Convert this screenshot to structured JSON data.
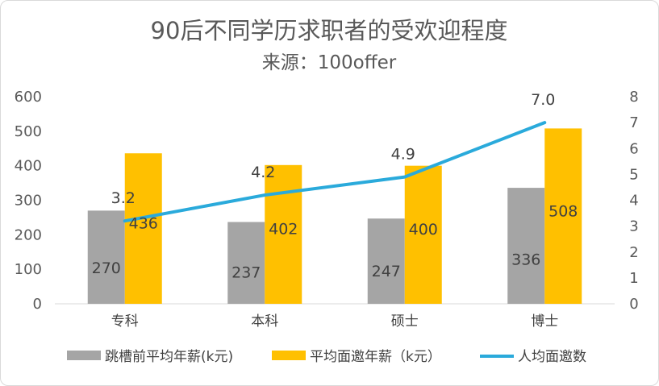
{
  "chart_data": {
    "type": "bar+line",
    "title": "90后不同学历求职者的受欢迎程度",
    "subtitle": "来源：100offer",
    "categories": [
      "专科",
      "本科",
      "硕士",
      "博士"
    ],
    "series": [
      {
        "name": "跳槽前平均年薪(k元)",
        "type": "bar",
        "axis": "left",
        "color": "#A5A5A5",
        "values": [
          270,
          237,
          247,
          336
        ]
      },
      {
        "name": "平均面邀年薪（k元）",
        "type": "bar",
        "axis": "left",
        "color": "#FFC000",
        "values": [
          436,
          402,
          400,
          508
        ]
      },
      {
        "name": "人均面邀数",
        "type": "line",
        "axis": "right",
        "color": "#2AAADB",
        "values": [
          3.2,
          4.2,
          4.9,
          7.0
        ]
      }
    ],
    "y_left": {
      "min": 0,
      "max": 600,
      "step": 100,
      "ticks": [
        "0",
        "100",
        "200",
        "300",
        "400",
        "500",
        "600"
      ]
    },
    "y_right": {
      "min": 0,
      "max": 8,
      "step": 1,
      "ticks": [
        "0",
        "1",
        "2",
        "3",
        "4",
        "5",
        "6",
        "7",
        "8"
      ]
    },
    "bar_labels": [
      [
        "270",
        "237",
        "247",
        "336"
      ],
      [
        "436",
        "402",
        "400",
        "508"
      ]
    ],
    "line_labels": [
      "3.2",
      "4.2",
      "4.9",
      "7.0"
    ],
    "legend_position": "bottom",
    "grid": false
  }
}
